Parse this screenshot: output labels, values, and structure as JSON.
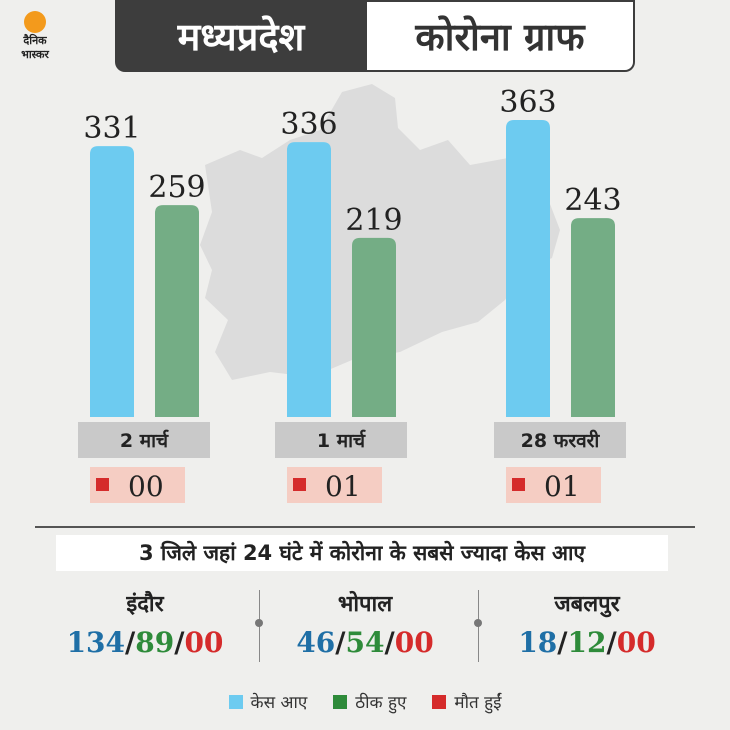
{
  "header": {
    "title_left": "मध्यप्रदेश",
    "title_right": "कोरोना ग्राफ",
    "logo_line1": "दैनिक",
    "logo_line2": "भास्कर"
  },
  "colors": {
    "cases": "#6dcbf0",
    "recovered": "#74ad85",
    "deaths": "#d52b2b",
    "stat_blue": "#1f6fa6",
    "stat_green": "#2e8b3a",
    "stat_red": "#d52b2b"
  },
  "chart_data": {
    "type": "bar",
    "categories": [
      "2 मार्च",
      "1 मार्च",
      "28 फरवरी"
    ],
    "series": [
      {
        "name": "केस आए",
        "values": [
          331,
          336,
          363
        ]
      },
      {
        "name": "ठीक हुए",
        "values": [
          259,
          219,
          243
        ]
      }
    ],
    "deaths_labels": [
      "00",
      "01",
      "01"
    ],
    "ylim": [
      0,
      370
    ]
  },
  "districts": {
    "heading": "3 जिले जहां 24 घंटे में कोरोना के सबसे ज्यादा केस आए",
    "items": [
      {
        "name": "इंदौर",
        "cases": "134",
        "recovered": "89",
        "deaths": "00"
      },
      {
        "name": "भोपाल",
        "cases": "46",
        "recovered": "54",
        "deaths": "00"
      },
      {
        "name": "जबलपुर",
        "cases": "18",
        "recovered": "12",
        "deaths": "00"
      }
    ]
  },
  "legend": [
    {
      "label": "केस आए",
      "color": "#6dcbf0"
    },
    {
      "label": "ठीक हुए",
      "color": "#2e8b3a"
    },
    {
      "label": "मौत हुईं",
      "color": "#d52b2b"
    }
  ]
}
